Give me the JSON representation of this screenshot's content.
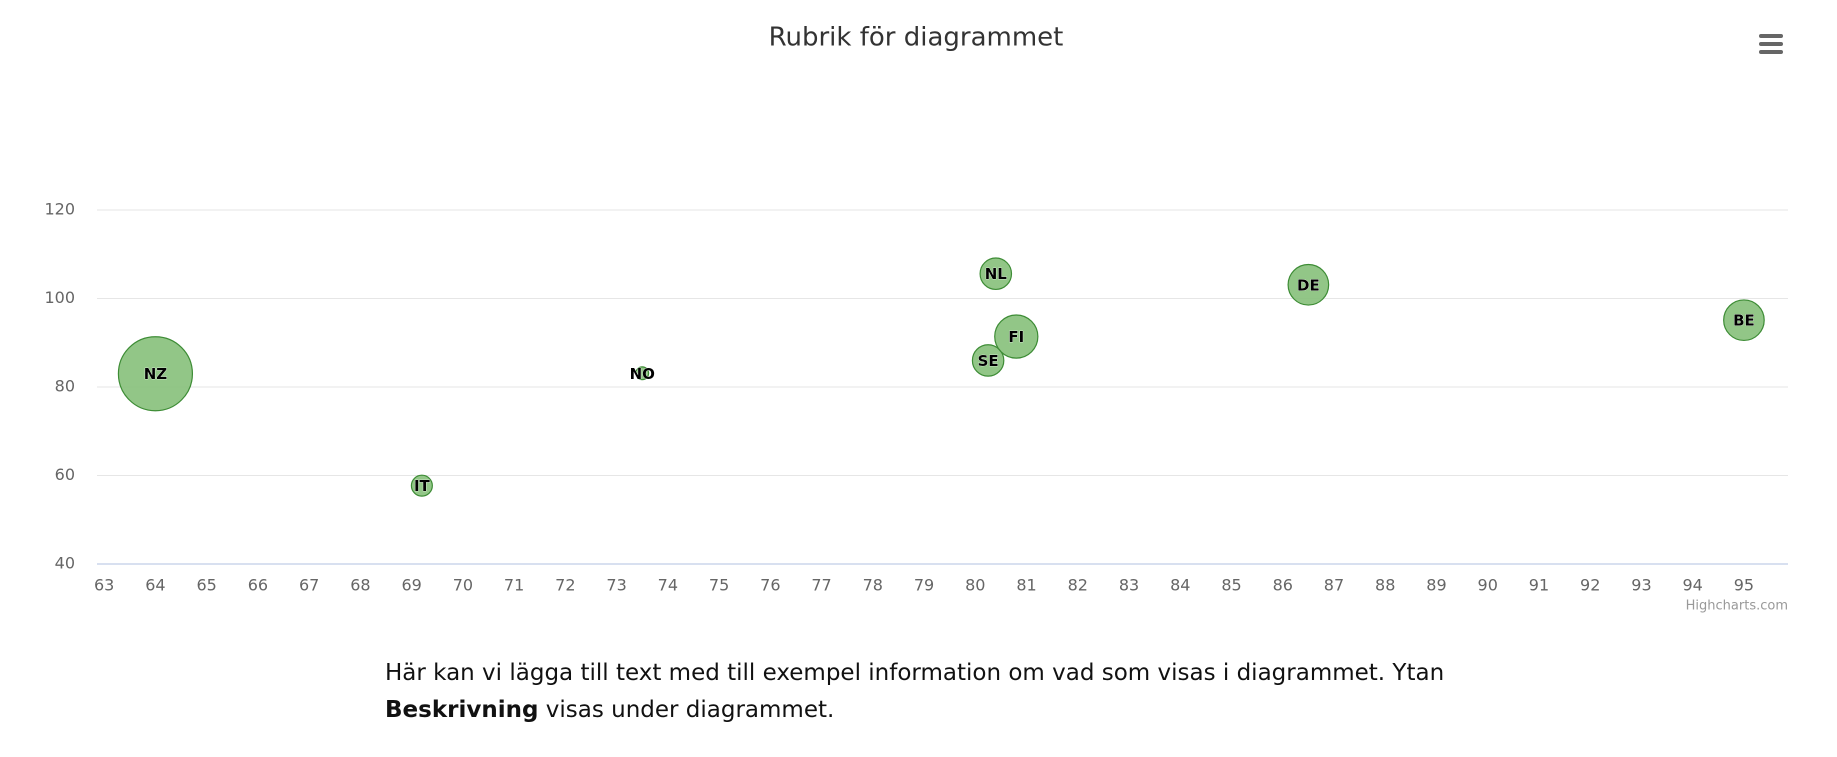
{
  "chart_data": {
    "type": "bubble",
    "title": "Rubrik för diagrammet",
    "labels": [
      "NZ",
      "IT",
      "NO",
      "SE",
      "NL",
      "FI",
      "DE",
      "BE"
    ],
    "x": [
      64,
      69.2,
      73.5,
      80.25,
      80.4,
      80.8,
      86.5,
      95
    ],
    "y": [
      83,
      57.7,
      83.1,
      86,
      105.6,
      91.4,
      103.1,
      95.1
    ],
    "z": [
      100,
      8,
      3,
      18,
      18,
      34,
      30,
      30
    ],
    "color": "#86c07a",
    "xlim": [
      62.86,
      95.86
    ],
    "xticks": [
      63,
      64,
      65,
      66,
      67,
      68,
      69,
      70,
      71,
      72,
      73,
      74,
      75,
      76,
      77,
      78,
      79,
      80,
      81,
      82,
      83,
      84,
      85,
      86,
      87,
      88,
      89,
      90,
      91,
      92,
      93,
      94,
      95
    ],
    "ylim": [
      40,
      120
    ],
    "yticks": [
      40,
      60,
      80,
      100,
      120
    ],
    "grid": true,
    "credits": "Highcharts.com"
  },
  "description": [
    "Här kan vi lägga till text med till exempel information om vad som visas i diagrammet. Ytan",
    "Beskrivning",
    "visas under diagrammet."
  ]
}
